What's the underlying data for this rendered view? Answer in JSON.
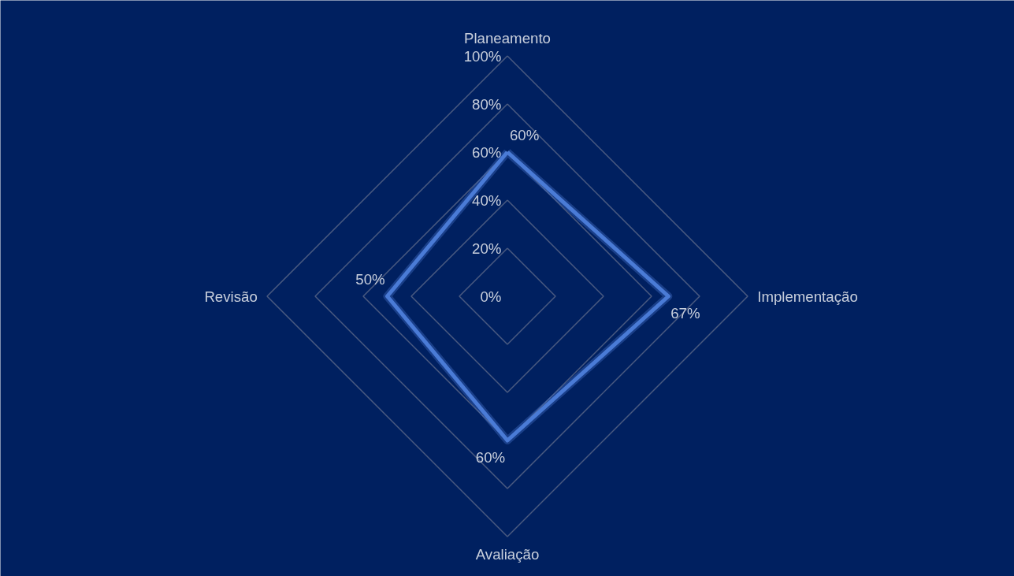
{
  "chart_data": {
    "type": "radar",
    "categories": [
      "Planeamento",
      "Implementação",
      "Avaliação",
      "Revisão"
    ],
    "series": [
      {
        "color": "#4a7bd6",
        "values": [
          60,
          67,
          60,
          50
        ],
        "value_labels": [
          "60%",
          "67%",
          "60%",
          "50%"
        ]
      }
    ],
    "ylim": [
      0,
      100
    ],
    "yticks": [
      {
        "value": 0,
        "label": "0%"
      },
      {
        "value": 20,
        "label": "20%"
      },
      {
        "value": 40,
        "label": "40%"
      },
      {
        "value": 60,
        "label": "60%"
      },
      {
        "value": 80,
        "label": "80%"
      },
      {
        "value": 100,
        "label": "100%"
      }
    ],
    "grid": true,
    "legend": false,
    "marker": "none",
    "line_style": "solid"
  }
}
